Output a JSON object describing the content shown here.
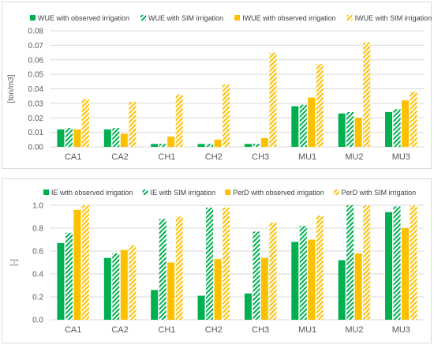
{
  "colors": {
    "green": "#00b050",
    "orange": "#ffc000",
    "grid": "#d9d9d9",
    "axis_text": "#595959"
  },
  "chart_data": [
    {
      "type": "bar",
      "ylabel": "[ton/m3]",
      "ylim": [
        0,
        0.08
      ],
      "yticks": [
        0,
        0.01,
        0.02,
        0.03,
        0.04,
        0.05,
        0.06,
        0.07,
        0.08
      ],
      "ytick_labels": [
        "0.00",
        "0.01",
        "0.02",
        "0.03",
        "0.04",
        "0.05",
        "0.06",
        "0.07",
        "0.08"
      ],
      "grid": true,
      "legend_position": "top",
      "categories": [
        "CA1",
        "CA2",
        "CH1",
        "CH2",
        "CH3",
        "MU1",
        "MU2",
        "MU3"
      ],
      "series": [
        {
          "name": "WUE with observed irrigation",
          "color": "#00b050",
          "pattern": "solid",
          "values": [
            0.012,
            0.012,
            0.002,
            0.002,
            0.002,
            0.028,
            0.023,
            0.024
          ]
        },
        {
          "name": "WUE with SIM irrigation",
          "color": "#00b050",
          "pattern": "hatched",
          "values": [
            0.013,
            0.013,
            0.002,
            0.002,
            0.002,
            0.029,
            0.024,
            0.026
          ]
        },
        {
          "name": "IWUE with observed irrigation",
          "color": "#ffc000",
          "pattern": "solid",
          "values": [
            0.012,
            0.009,
            0.007,
            0.005,
            0.006,
            0.034,
            0.02,
            0.032
          ]
        },
        {
          "name": "IWUE with SIM irrigation",
          "color": "#ffc000",
          "pattern": "hatched",
          "values": [
            0.033,
            0.031,
            0.036,
            0.043,
            0.065,
            0.057,
            0.072,
            0.038
          ]
        }
      ]
    },
    {
      "type": "bar",
      "ylabel": "[-]",
      "ylim": [
        0,
        1.0
      ],
      "yticks": [
        0,
        0.2,
        0.4,
        0.6,
        0.8,
        1.0
      ],
      "ytick_labels": [
        "0.0",
        "0.2",
        "0.4",
        "0.6",
        "0.8",
        "1.0"
      ],
      "grid": true,
      "legend_position": "top",
      "categories": [
        "CA1",
        "CA2",
        "CH1",
        "CH2",
        "CH3",
        "MU1",
        "MU2",
        "MU3"
      ],
      "series": [
        {
          "name": "IE with observed irrigation",
          "color": "#00b050",
          "pattern": "solid",
          "values": [
            0.67,
            0.54,
            0.26,
            0.21,
            0.23,
            0.68,
            0.52,
            0.94
          ]
        },
        {
          "name": "IE with SIM irrigation",
          "color": "#00b050",
          "pattern": "hatched",
          "values": [
            0.76,
            0.58,
            0.88,
            0.98,
            0.77,
            0.82,
            1.0,
            0.99
          ]
        },
        {
          "name": "PerD with observed irrigation",
          "color": "#ffc000",
          "pattern": "solid",
          "values": [
            0.96,
            0.61,
            0.5,
            0.53,
            0.54,
            0.7,
            0.58,
            0.8
          ]
        },
        {
          "name": "PerD with SIM irrigation",
          "color": "#ffc000",
          "pattern": "hatched",
          "values": [
            1.0,
            0.65,
            0.9,
            0.98,
            0.85,
            0.91,
            1.0,
            1.0
          ]
        }
      ]
    }
  ]
}
